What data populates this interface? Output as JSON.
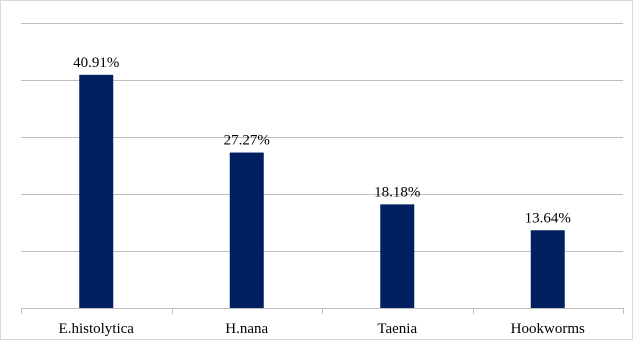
{
  "chart_data": {
    "type": "bar",
    "categories": [
      "E.histolytica",
      "H.nana",
      "Taenia",
      "Hookworms"
    ],
    "values": [
      40.91,
      27.27,
      18.18,
      13.64
    ],
    "data_labels": [
      "40.91%",
      "27.27%",
      "18.18%",
      "13.64%"
    ],
    "title": "",
    "xlabel": "",
    "ylabel": "",
    "ylim": [
      0,
      50
    ],
    "grid": true,
    "legend": "none",
    "bar_color": "#002060",
    "gridline_color": "#bfbfbf"
  }
}
